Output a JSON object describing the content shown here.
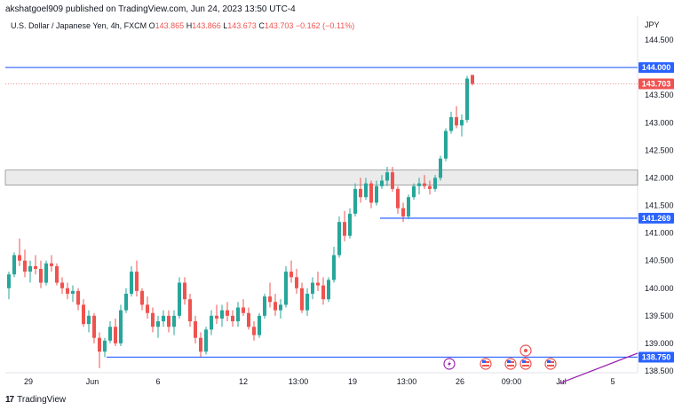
{
  "header": {
    "credit": "akshatgoel909 published on TradingView.com, Jun 24, 2023 13:50 UTC-4"
  },
  "legend": {
    "symbol": "U.S. Dollar / Japanese Yen, 4h, FXCM",
    "open_label": "O",
    "open": "143.865",
    "high_label": "H",
    "high": "143.866",
    "low_label": "L",
    "low": "143.673",
    "close_label": "C",
    "close": "143.703",
    "change": "−0.162 (−0.11%)"
  },
  "footer": {
    "logo_mark": "17",
    "logo_text": "TradingView"
  },
  "colors": {
    "up": "#26a69a",
    "down": "#ef5350",
    "line": "#2962ff",
    "zone_fill": "#ebebeb",
    "zone_border": "#707070",
    "trend": "#9c27b0"
  },
  "chart_data": {
    "type": "candlestick",
    "currency": "JPY",
    "ylim": [
      138.5,
      144.75
    ],
    "y_ticks": [
      "144.500",
      "144.000",
      "143.500",
      "143.000",
      "142.500",
      "142.000",
      "141.500",
      "141.000",
      "140.500",
      "140.000",
      "139.500",
      "139.000",
      "138.500"
    ],
    "x_ticks": [
      "29",
      "Jun",
      "6",
      "12",
      "13:00",
      "19",
      "13:00",
      "26",
      "09:00",
      "Jul",
      "5"
    ],
    "horizontal_lines": [
      144.0,
      141.269,
      138.75
    ],
    "price_labels": [
      "144.000",
      "143.703",
      "141.269",
      "138.750"
    ],
    "current_price": 143.703,
    "zone": [
      141.87,
      142.14
    ],
    "candles": [
      [
        140.0,
        140.3,
        139.8,
        140.25
      ],
      [
        140.25,
        140.65,
        140.2,
        140.6
      ],
      [
        140.6,
        140.9,
        140.4,
        140.5
      ],
      [
        140.5,
        140.7,
        140.2,
        140.3
      ],
      [
        140.3,
        140.5,
        140.1,
        140.4
      ],
      [
        140.4,
        140.6,
        140.25,
        140.35
      ],
      [
        140.35,
        140.5,
        140.0,
        140.1
      ],
      [
        140.1,
        140.5,
        140.05,
        140.45
      ],
      [
        140.45,
        140.6,
        140.3,
        140.4
      ],
      [
        140.4,
        140.45,
        140.05,
        140.1
      ],
      [
        140.1,
        140.2,
        139.9,
        140.0
      ],
      [
        140.0,
        140.1,
        139.8,
        139.9
      ],
      [
        139.9,
        140.05,
        139.75,
        139.95
      ],
      [
        139.95,
        140.0,
        139.6,
        139.7
      ],
      [
        139.7,
        139.8,
        139.3,
        139.35
      ],
      [
        139.35,
        139.6,
        139.2,
        139.5
      ],
      [
        139.5,
        139.55,
        139.0,
        139.1
      ],
      [
        139.1,
        139.2,
        138.55,
        138.85
      ],
      [
        138.85,
        139.1,
        138.75,
        139.05
      ],
      [
        139.05,
        139.4,
        139.0,
        139.3
      ],
      [
        139.3,
        139.45,
        138.95,
        139.0
      ],
      [
        139.0,
        139.7,
        138.95,
        139.6
      ],
      [
        139.6,
        140.0,
        139.55,
        139.9
      ],
      [
        139.9,
        140.4,
        139.85,
        140.3
      ],
      [
        140.3,
        140.5,
        139.85,
        139.95
      ],
      [
        139.95,
        140.0,
        139.6,
        139.7
      ],
      [
        139.7,
        139.85,
        139.45,
        139.55
      ],
      [
        139.55,
        139.65,
        139.2,
        139.3
      ],
      [
        139.3,
        139.5,
        139.1,
        139.4
      ],
      [
        139.4,
        139.6,
        139.3,
        139.5
      ],
      [
        139.5,
        139.6,
        139.2,
        139.3
      ],
      [
        139.3,
        139.6,
        139.15,
        139.5
      ],
      [
        139.5,
        140.2,
        139.45,
        140.1
      ],
      [
        140.1,
        140.2,
        139.7,
        139.8
      ],
      [
        139.8,
        139.9,
        139.3,
        139.4
      ],
      [
        139.4,
        139.5,
        139.0,
        139.1
      ],
      [
        139.1,
        139.2,
        138.75,
        138.85
      ],
      [
        138.85,
        139.3,
        138.8,
        139.25
      ],
      [
        139.25,
        139.6,
        139.15,
        139.5
      ],
      [
        139.5,
        139.7,
        139.35,
        139.45
      ],
      [
        139.45,
        139.7,
        139.3,
        139.6
      ],
      [
        139.6,
        139.75,
        139.4,
        139.5
      ],
      [
        139.5,
        139.6,
        139.3,
        139.4
      ],
      [
        139.4,
        139.75,
        139.3,
        139.65
      ],
      [
        139.65,
        139.8,
        139.5,
        139.55
      ],
      [
        139.55,
        139.65,
        139.25,
        139.3
      ],
      [
        139.3,
        139.4,
        139.05,
        139.15
      ],
      [
        139.15,
        139.55,
        139.1,
        139.5
      ],
      [
        139.5,
        139.9,
        139.45,
        139.85
      ],
      [
        139.85,
        140.1,
        139.65,
        139.75
      ],
      [
        139.75,
        139.9,
        139.5,
        139.6
      ],
      [
        139.6,
        139.8,
        139.45,
        139.7
      ],
      [
        139.7,
        140.4,
        139.65,
        140.3
      ],
      [
        140.3,
        140.5,
        140.1,
        140.2
      ],
      [
        140.2,
        140.35,
        139.9,
        140.0
      ],
      [
        140.0,
        140.1,
        139.55,
        139.6
      ],
      [
        139.6,
        140.0,
        139.5,
        139.9
      ],
      [
        139.9,
        140.2,
        139.8,
        140.1
      ],
      [
        140.1,
        140.3,
        139.95,
        140.05
      ],
      [
        140.05,
        140.2,
        139.7,
        139.8
      ],
      [
        139.8,
        140.2,
        139.75,
        140.15
      ],
      [
        140.15,
        140.75,
        140.1,
        140.6
      ],
      [
        140.6,
        141.3,
        140.55,
        141.2
      ],
      [
        141.2,
        141.4,
        140.85,
        140.95
      ],
      [
        140.95,
        141.45,
        140.9,
        141.35
      ],
      [
        141.35,
        141.9,
        141.3,
        141.8
      ],
      [
        141.8,
        142.0,
        141.55,
        141.65
      ],
      [
        141.65,
        142.0,
        141.6,
        141.9
      ],
      [
        141.9,
        141.95,
        141.45,
        141.55
      ],
      [
        141.55,
        141.95,
        141.5,
        141.85
      ],
      [
        141.85,
        142.05,
        141.8,
        141.95
      ],
      [
        141.95,
        142.2,
        141.85,
        142.1
      ],
      [
        142.1,
        142.2,
        141.75,
        141.8
      ],
      [
        141.8,
        141.85,
        141.35,
        141.45
      ],
      [
        141.45,
        141.55,
        141.2,
        141.3
      ],
      [
        141.3,
        141.7,
        141.25,
        141.65
      ],
      [
        141.65,
        141.9,
        141.6,
        141.85
      ],
      [
        141.85,
        142.0,
        141.7,
        141.9
      ],
      [
        141.9,
        142.05,
        141.8,
        141.85
      ],
      [
        141.85,
        141.95,
        141.7,
        141.8
      ],
      [
        141.8,
        142.05,
        141.75,
        142.0
      ],
      [
        142.0,
        142.4,
        141.95,
        142.35
      ],
      [
        142.35,
        142.9,
        142.3,
        142.85
      ],
      [
        142.85,
        143.2,
        142.8,
        143.1
      ],
      [
        143.1,
        143.3,
        142.9,
        142.95
      ],
      [
        142.95,
        143.15,
        142.75,
        143.05
      ],
      [
        143.05,
        143.85,
        143.0,
        143.8
      ],
      [
        143.865,
        143.866,
        143.673,
        143.703
      ]
    ]
  }
}
